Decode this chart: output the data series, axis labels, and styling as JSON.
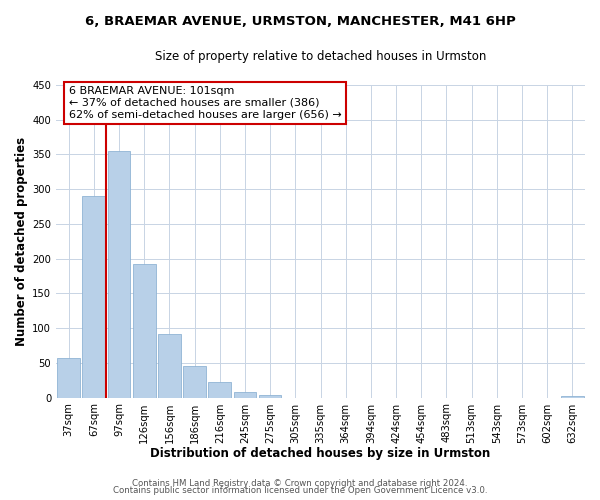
{
  "title_line1": "6, BRAEMAR AVENUE, URMSTON, MANCHESTER, M41 6HP",
  "title_line2": "Size of property relative to detached houses in Urmston",
  "xlabel": "Distribution of detached houses by size in Urmston",
  "ylabel": "Number of detached properties",
  "bar_labels": [
    "37sqm",
    "67sqm",
    "97sqm",
    "126sqm",
    "156sqm",
    "186sqm",
    "216sqm",
    "245sqm",
    "275sqm",
    "305sqm",
    "335sqm",
    "364sqm",
    "394sqm",
    "424sqm",
    "454sqm",
    "483sqm",
    "513sqm",
    "543sqm",
    "573sqm",
    "602sqm",
    "632sqm"
  ],
  "bar_values": [
    57,
    290,
    355,
    193,
    91,
    46,
    22,
    8,
    4,
    0,
    0,
    0,
    0,
    0,
    0,
    0,
    0,
    0,
    0,
    0,
    3
  ],
  "bar_color": "#b8d0e8",
  "bar_edge_color": "#90b4d4",
  "reference_line_x": 1.5,
  "reference_line_color": "#cc0000",
  "ylim": [
    0,
    450
  ],
  "yticks": [
    0,
    50,
    100,
    150,
    200,
    250,
    300,
    350,
    400,
    450
  ],
  "annotation_title": "6 BRAEMAR AVENUE: 101sqm",
  "annotation_line1": "← 37% of detached houses are smaller (386)",
  "annotation_line2": "62% of semi-detached houses are larger (656) →",
  "annotation_box_color": "#ffffff",
  "annotation_border_color": "#cc0000",
  "footnote_line1": "Contains HM Land Registry data © Crown copyright and database right 2024.",
  "footnote_line2": "Contains public sector information licensed under the Open Government Licence v3.0.",
  "background_color": "#ffffff",
  "grid_color": "#c8d4e4",
  "title1_fontsize": 9.5,
  "title2_fontsize": 8.5,
  "tick_fontsize": 7.2,
  "label_fontsize": 8.5,
  "annot_fontsize": 8.0,
  "footnote_fontsize": 6.2
}
